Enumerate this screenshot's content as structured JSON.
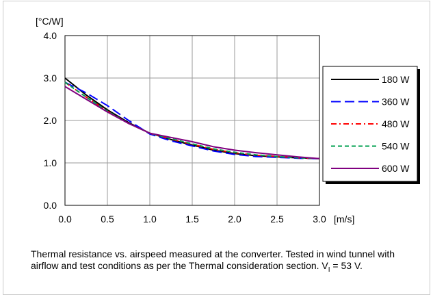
{
  "chart_data": {
    "type": "line",
    "ylabel": "[°C/W]",
    "xlabel": "[m/s]",
    "xlim": [
      0,
      3
    ],
    "ylim": [
      0,
      4
    ],
    "x_ticks": [
      "0.0",
      "0.5",
      "1.0",
      "1.5",
      "2.0",
      "2.5",
      "3.0"
    ],
    "y_ticks": [
      "0.0",
      "1.0",
      "2.0",
      "3.0",
      "4.0"
    ],
    "grid": true,
    "legend_position": "right",
    "series": [
      {
        "name": "180 W",
        "color": "#000000",
        "dash": "solid",
        "x": [
          0.0,
          0.25,
          0.5,
          0.75,
          1.0,
          1.25,
          1.5,
          1.75,
          2.0,
          2.25,
          2.5,
          2.75,
          3.0
        ],
        "y": [
          3.0,
          2.6,
          2.25,
          1.95,
          1.7,
          1.55,
          1.42,
          1.3,
          1.22,
          1.17,
          1.14,
          1.12,
          1.1
        ]
      },
      {
        "name": "360 W",
        "color": "#0000ff",
        "dash": "long-dash",
        "x": [
          0.0,
          0.25,
          0.5,
          0.75,
          1.0,
          1.25,
          1.5,
          1.75,
          2.0,
          2.25,
          2.5,
          2.75,
          3.0
        ],
        "y": [
          2.9,
          2.65,
          2.35,
          2.0,
          1.68,
          1.52,
          1.4,
          1.28,
          1.2,
          1.15,
          1.13,
          1.11,
          1.1
        ]
      },
      {
        "name": "480 W",
        "color": "#ff0000",
        "dash": "dash-dot",
        "x": [
          0.0,
          0.25,
          0.5,
          0.75,
          1.0,
          1.25,
          1.5,
          1.75,
          2.0,
          2.25,
          2.5,
          2.75,
          3.0
        ],
        "y": [
          2.9,
          2.55,
          2.22,
          1.93,
          1.7,
          1.56,
          1.44,
          1.32,
          1.24,
          1.18,
          1.15,
          1.12,
          1.1
        ]
      },
      {
        "name": "540 W",
        "color": "#00a050",
        "dash": "short-dash",
        "x": [
          0.0,
          0.25,
          0.5,
          0.75,
          1.0,
          1.25,
          1.5,
          1.75,
          2.0,
          2.25,
          2.5,
          2.75,
          3.0
        ],
        "y": [
          2.9,
          2.55,
          2.22,
          1.93,
          1.7,
          1.57,
          1.45,
          1.33,
          1.25,
          1.19,
          1.15,
          1.12,
          1.1
        ]
      },
      {
        "name": "600 W",
        "color": "#800080",
        "dash": "solid",
        "x": [
          0.0,
          0.25,
          0.5,
          0.75,
          1.0,
          1.25,
          1.5,
          1.75,
          2.0,
          2.25,
          2.5,
          2.75,
          3.0
        ],
        "y": [
          2.8,
          2.5,
          2.2,
          1.93,
          1.7,
          1.6,
          1.5,
          1.38,
          1.3,
          1.24,
          1.19,
          1.14,
          1.1
        ]
      }
    ]
  },
  "caption": {
    "text_main": "Thermal resistance vs. airspeed measured at the converter. Tested in wind tunnel with airflow and test conditions as per the Thermal consideration section. V",
    "subscript": "I",
    "text_end": " = 53 V."
  }
}
